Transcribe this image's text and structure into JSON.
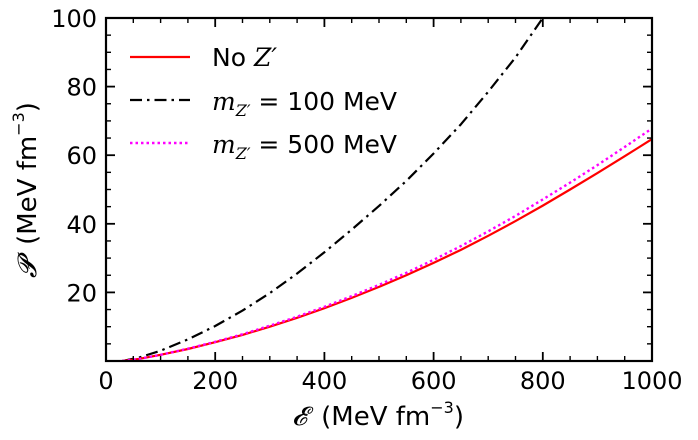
{
  "chart_data": {
    "type": "line",
    "xlabel_prefix": "𝓔",
    "xlabel_units": "(MeV fm",
    "xlabel_exp": "−3",
    "ylabel_prefix": "𝓟",
    "ylabel_units": "(MeV fm",
    "ylabel_exp": "−3",
    "xlim": [
      0,
      1000
    ],
    "ylim": [
      0,
      100
    ],
    "xticks": [
      0,
      200,
      400,
      600,
      800,
      1000
    ],
    "yticks": [
      20,
      40,
      60,
      80,
      100
    ],
    "legend_position": "top-left",
    "series": [
      {
        "name": "No Z′",
        "legend_main": "No ",
        "legend_italic": "Z′",
        "color": "#ff0000",
        "style": "solid",
        "x": [
          30,
          60,
          100,
          150,
          200,
          250,
          300,
          350,
          400,
          450,
          500,
          550,
          600,
          650,
          700,
          750,
          800,
          850,
          900,
          950,
          1000
        ],
        "y": [
          0,
          0.6,
          1.8,
          3.5,
          5.5,
          7.6,
          10.0,
          12.6,
          15.4,
          18.4,
          21.6,
          25.0,
          28.6,
          32.4,
          36.5,
          40.8,
          45.3,
          50.0,
          54.8,
          59.7,
          64.7
        ]
      },
      {
        "name": "m_Z′ = 100 MeV",
        "legend_main": "m",
        "legend_sub": "Z′",
        "legend_rest": " = 100 MeV",
        "color": "#000000",
        "style": "dashdot",
        "x": [
          30,
          60,
          100,
          150,
          200,
          250,
          300,
          350,
          400,
          450,
          500,
          550,
          600,
          650,
          700,
          750,
          800
        ],
        "y": [
          0,
          1.0,
          3.0,
          6.3,
          10.2,
          14.7,
          19.8,
          25.5,
          31.7,
          38.3,
          45.2,
          52.5,
          60.5,
          69.0,
          78.5,
          88.5,
          100
        ]
      },
      {
        "name": "m_Z′ = 500 MeV",
        "legend_main": "m",
        "legend_sub": "Z′",
        "legend_rest": " = 500 MeV",
        "color": "#ff00ff",
        "style": "dotted",
        "x": [
          30,
          60,
          100,
          150,
          200,
          250,
          300,
          350,
          400,
          450,
          500,
          550,
          600,
          650,
          700,
          750,
          800,
          850,
          900,
          950,
          1000
        ],
        "y": [
          0,
          0.6,
          1.8,
          3.6,
          5.6,
          7.8,
          10.3,
          12.9,
          15.8,
          18.9,
          22.2,
          25.7,
          29.5,
          33.5,
          37.8,
          42.3,
          47.1,
          52.0,
          57.1,
          62.4,
          67.8
        ]
      }
    ]
  }
}
